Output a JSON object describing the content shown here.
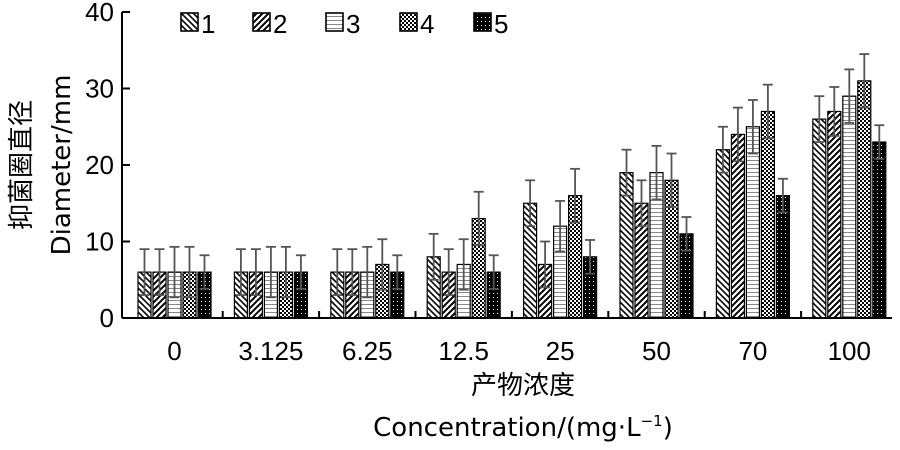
{
  "chart_data": {
    "type": "bar",
    "categories": [
      "0",
      "3.125",
      "6.25",
      "12.5",
      "25",
      "50",
      "70",
      "100"
    ],
    "series": [
      {
        "name": "1",
        "values": [
          6,
          6,
          6,
          8,
          15,
          19,
          22,
          26
        ],
        "errors": [
          3,
          3,
          3,
          3,
          3,
          3,
          3,
          3
        ],
        "pattern": "diag-back"
      },
      {
        "name": "2",
        "values": [
          6,
          6,
          6,
          6,
          7,
          15,
          24,
          27
        ],
        "errors": [
          3,
          3,
          3,
          3,
          3,
          3,
          3.5,
          3.2
        ],
        "pattern": "diag-forward"
      },
      {
        "name": "3",
        "values": [
          6,
          6,
          6,
          7,
          12,
          19,
          25,
          29
        ],
        "errors": [
          3.3,
          3.3,
          3.3,
          3.3,
          3.3,
          3.5,
          3.5,
          3.5
        ],
        "pattern": "hlines"
      },
      {
        "name": "4",
        "values": [
          6,
          6,
          7,
          13,
          16,
          18,
          27,
          31
        ],
        "errors": [
          3.3,
          3.3,
          3.3,
          3.5,
          3.5,
          3.5,
          3.5,
          3.5
        ],
        "pattern": "checker"
      },
      {
        "name": "5",
        "values": [
          6,
          6,
          6,
          6,
          8,
          11,
          16,
          23
        ],
        "errors": [
          2.2,
          2.2,
          2.2,
          2.2,
          2.2,
          2.2,
          2.2,
          2.2
        ],
        "pattern": "dense-dots"
      }
    ],
    "ylim": [
      0,
      40
    ],
    "yticks": [
      0,
      10,
      20,
      30,
      40
    ],
    "ylabel_cn": "抑菌圈直径",
    "ylabel_en": "Diameter/mm",
    "xlabel_cn": "产物浓度",
    "xlabel_en": "Concentration/(mg·L",
    "xlabel_en_sup": "−1",
    "xlabel_en_end": ")",
    "legend_position": "top-left",
    "error_bar_color": "#555555"
  }
}
